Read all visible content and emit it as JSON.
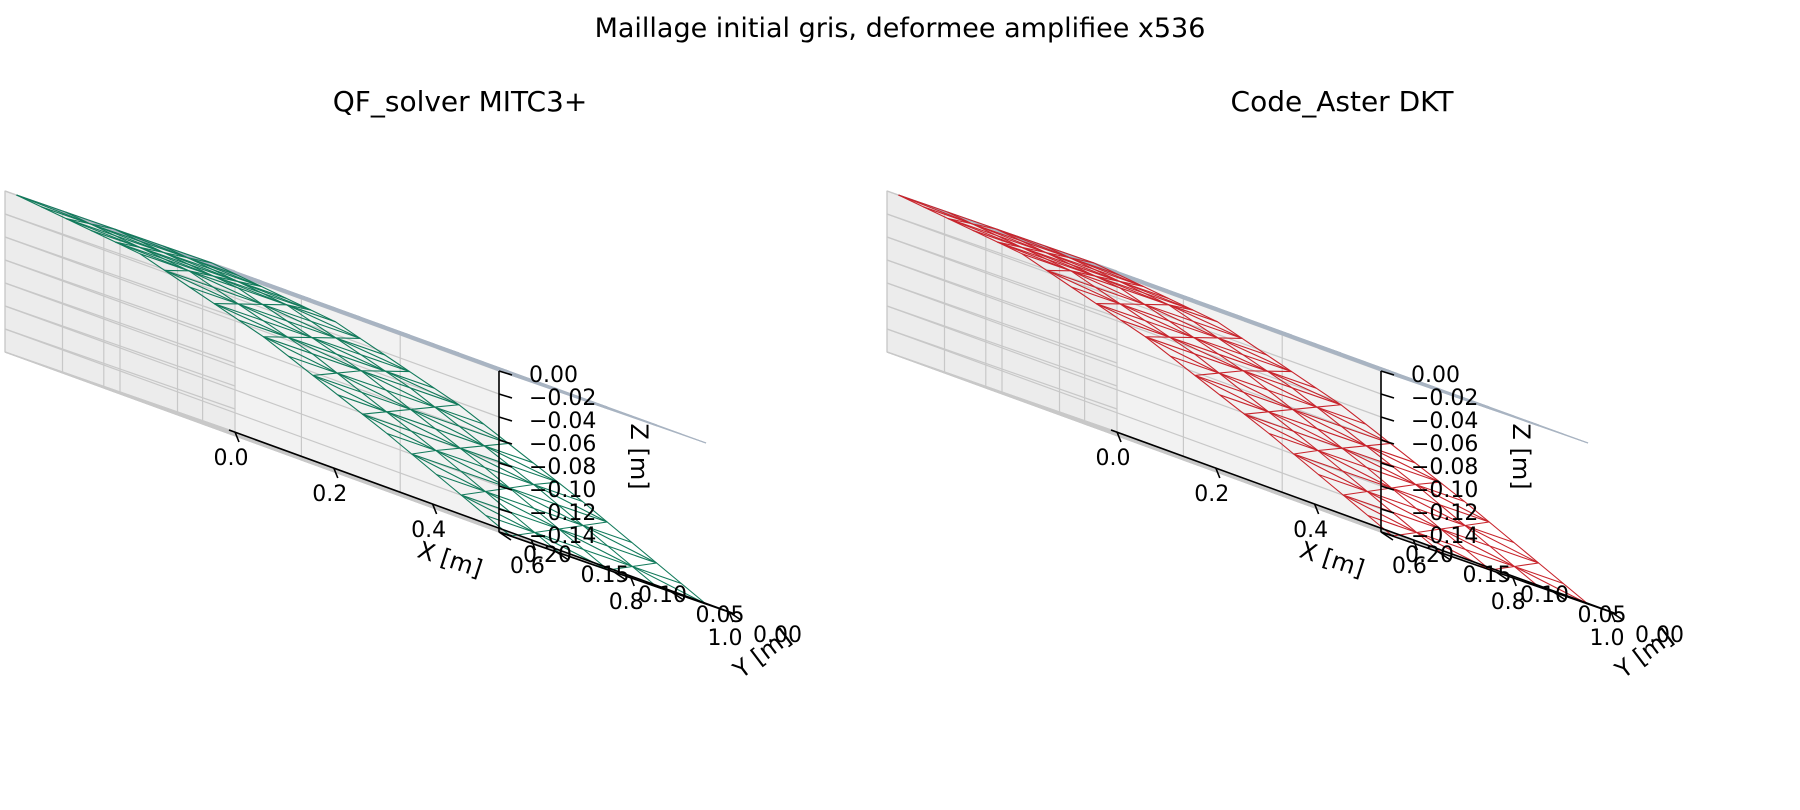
{
  "figure": {
    "title": "Maillage initial gris, deformee amplifiee x536"
  },
  "colors": {
    "initial_mesh": "#a9b4c2",
    "qf_solver": "#127a5b",
    "code_aster": "#c8242c",
    "pane": "#f2f2f2",
    "grid": "#c8c8c8"
  },
  "chart_data": [
    {
      "type": "3d-wireframe",
      "title": "QF_solver MITC3+",
      "xlabel": "X [m]",
      "ylabel": "Y [m]",
      "zlabel": "Z [m]",
      "xticks": [
        "0.0",
        "0.2",
        "0.4",
        "0.6",
        "0.8",
        "1.0"
      ],
      "yticks": [
        "0.00",
        "0.05",
        "0.10",
        "0.15",
        "0.20"
      ],
      "zticks": [
        "0.00",
        "−0.02",
        "−0.04",
        "−0.06",
        "−0.08",
        "−0.10",
        "−0.12",
        "−0.14"
      ],
      "xlim": [
        0,
        1.0
      ],
      "ylim": [
        0,
        0.2
      ],
      "zlim": [
        -0.14,
        0.0
      ],
      "mesh_divisions": {
        "x": 20,
        "y": 4
      },
      "series": [
        {
          "role": "initial",
          "z_at_x": [
            [
              0,
              0
            ],
            [
              1,
              0
            ]
          ],
          "color": "#a9b4c2"
        },
        {
          "role": "deformed",
          "z_at_x": [
            [
              0,
              0
            ],
            [
              0.25,
              -0.012
            ],
            [
              0.5,
              -0.045
            ],
            [
              0.75,
              -0.09
            ],
            [
              1,
              -0.14
            ]
          ],
          "color": "#127a5b"
        }
      ]
    },
    {
      "type": "3d-wireframe",
      "title": "Code_Aster DKT",
      "xlabel": "X [m]",
      "ylabel": "Y [m]",
      "zlabel": "Z [m]",
      "xticks": [
        "0.0",
        "0.2",
        "0.4",
        "0.6",
        "0.8",
        "1.0"
      ],
      "yticks": [
        "0.00",
        "0.05",
        "0.10",
        "0.15",
        "0.20"
      ],
      "zticks": [
        "0.00",
        "−0.02",
        "−0.04",
        "−0.06",
        "−0.08",
        "−0.10",
        "−0.12",
        "−0.14"
      ],
      "xlim": [
        0,
        1.0
      ],
      "ylim": [
        0,
        0.2
      ],
      "zlim": [
        -0.14,
        0.0
      ],
      "mesh_divisions": {
        "x": 20,
        "y": 4
      },
      "series": [
        {
          "role": "initial",
          "z_at_x": [
            [
              0,
              0
            ],
            [
              1,
              0
            ]
          ],
          "color": "#a9b4c2"
        },
        {
          "role": "deformed",
          "z_at_x": [
            [
              0,
              0
            ],
            [
              0.25,
              -0.012
            ],
            [
              0.5,
              -0.045
            ],
            [
              0.75,
              -0.09
            ],
            [
              1,
              -0.14
            ]
          ],
          "color": "#c8242c"
        }
      ]
    }
  ]
}
